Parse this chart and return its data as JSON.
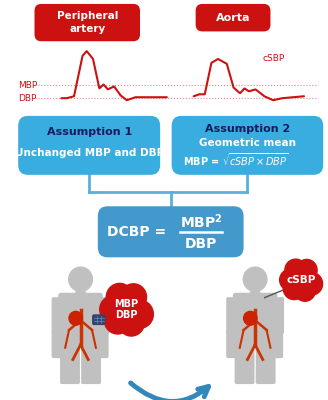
{
  "bg_color": "#ffffff",
  "red_color": "#cc1111",
  "blue_box_light": "#3aade0",
  "blue_box_mid": "#4499cc",
  "blue_conn_color": "#5ab0d8",
  "dotted_line_color": "#e08888",
  "assumption1_title": "Assumption 1",
  "assumption1_text": "Unchanged MBP and DBP",
  "assumption2_title": "Assumption 2",
  "assumption2_text1": "Geometric mean",
  "peripheral_label": "Peripheral\nartery",
  "aorta_label": "Aorta",
  "mbp_label": "MBP",
  "dbp_label": "DBP",
  "csbp_label": "cSBP",
  "mbp_dbp_cloud": "MBP\nDBP",
  "csbp_cloud": "cSBP",
  "figure_color": "#b8b8b8",
  "vascular_color": "#cc3300",
  "body_color": "#c0c0c0"
}
